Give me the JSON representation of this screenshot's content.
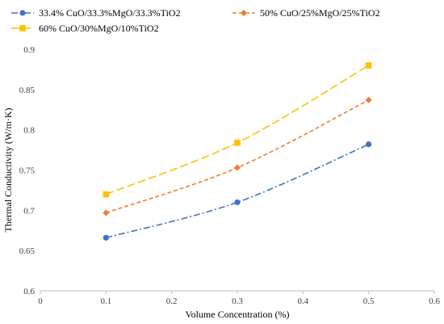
{
  "chart_data": {
    "type": "scatter",
    "title": "",
    "xlabel": "Volume Concentration (%)",
    "ylabel": "Thermal Conductivity (W/m·K)",
    "xlim": [
      0,
      0.6
    ],
    "ylim": [
      0.6,
      0.9
    ],
    "xticks": [
      0,
      0.1,
      0.2,
      0.3,
      0.4,
      0.5,
      0.6
    ],
    "xtick_labels": [
      "0",
      "0.1",
      "0.2",
      "0.3",
      "0.4",
      "0.5",
      "0.6"
    ],
    "yticks": [
      0.6,
      0.65,
      0.7,
      0.75,
      0.8,
      0.85,
      0.9
    ],
    "ytick_labels": [
      "0.6",
      "0.65",
      "0.7",
      "0.75",
      "0.8",
      "0.85",
      "0.9"
    ],
    "grid": false,
    "legend_position": "top",
    "series": [
      {
        "name": "33.4% CuO/33.3%MgO/33.3%TiO2",
        "color": "#4472C4",
        "marker": "circle",
        "line_style": "dash-dot",
        "x": [
          0.1,
          0.3,
          0.5
        ],
        "y": [
          0.666,
          0.71,
          0.782
        ]
      },
      {
        "name": "50% CuO/25%MgO/25%TiO2",
        "color": "#ED7D31",
        "marker": "diamond",
        "line_style": "dashed",
        "x": [
          0.1,
          0.3,
          0.5
        ],
        "y": [
          0.697,
          0.753,
          0.837
        ]
      },
      {
        "name": "60% CuO/30%MgO/10%TiO2",
        "color": "#FFC000",
        "marker": "square",
        "line_style": "long-dash",
        "x": [
          0.1,
          0.3,
          0.5
        ],
        "y": [
          0.72,
          0.784,
          0.88
        ]
      }
    ]
  }
}
